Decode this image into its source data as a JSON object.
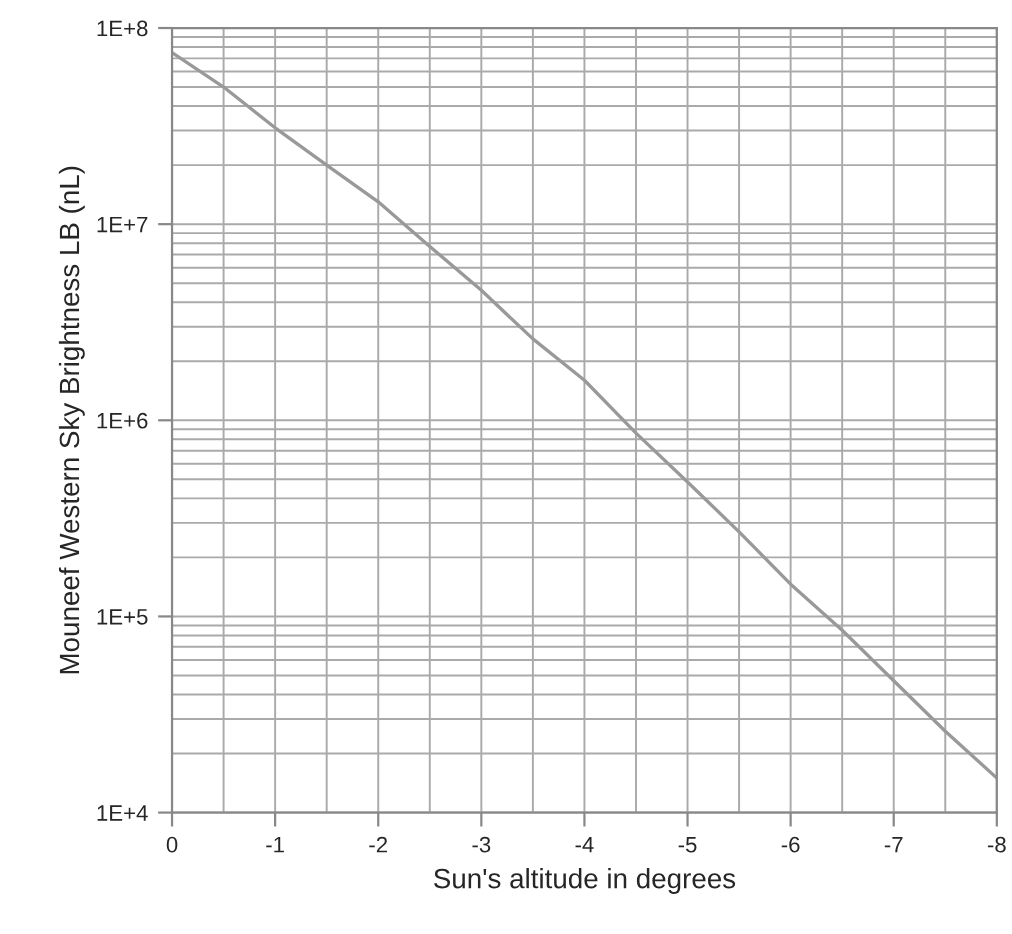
{
  "chart_data": {
    "type": "line",
    "xlabel": "Sun's altitude in degrees",
    "ylabel": "Mouneef Western Sky Brightness LB (nL)",
    "x": [
      0,
      -0.5,
      -1,
      -1.5,
      -2,
      -2.5,
      -3,
      -3.5,
      -4,
      -4.5,
      -5,
      -5.5,
      -6,
      -6.5,
      -7,
      -7.5,
      -8
    ],
    "series": [
      {
        "color": "#999999",
        "values": [
          75000000,
          50000000,
          31000000,
          20000000,
          13000000,
          7700000,
          4600000,
          2600000,
          1600000,
          860000,
          485000,
          270000,
          146000,
          85000,
          47000,
          26000,
          15000
        ]
      }
    ],
    "log": "y",
    "xlim": [
      0,
      -8
    ],
    "xticks": [
      0,
      -1,
      -2,
      -3,
      -4,
      -5,
      -6,
      -7,
      -8
    ],
    "ylim": [
      10000,
      100000000
    ],
    "yticks": [
      {
        "value": 10000,
        "label": "1E+4"
      },
      {
        "value": 100000,
        "label": "1E+5"
      },
      {
        "value": 1000000,
        "label": "1E+6"
      },
      {
        "value": 10000000,
        "label": "1E+7"
      },
      {
        "value": 100000000,
        "label": "1E+8"
      }
    ],
    "grid": true,
    "legend": false,
    "marker": "none",
    "line_style": "solid"
  }
}
